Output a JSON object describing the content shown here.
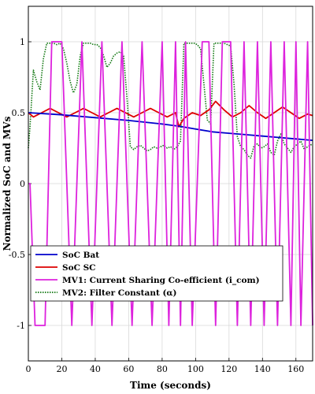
{
  "chart_data": {
    "type": "line",
    "title": "",
    "xlabel": "Time (seconds)",
    "ylabel": "Normalized SoC and MVs",
    "xlim": [
      0,
      170
    ],
    "ylim": [
      -1.25,
      1.25
    ],
    "x_ticks": [
      0,
      20,
      40,
      60,
      80,
      100,
      120,
      140,
      160
    ],
    "y_ticks": [
      -1,
      -0.5,
      0,
      0.5,
      1
    ],
    "x_tick_labels": [
      "0",
      "20",
      "40",
      "60",
      "80",
      "100",
      "120",
      "140",
      "160"
    ],
    "y_tick_labels": [
      "-1",
      "-0.5",
      "0",
      "0.5",
      "1"
    ],
    "grid": true,
    "legend_position": "lower-left",
    "series": [
      {
        "name": "SoC Bat",
        "color": "#0000cc",
        "style": "solid",
        "x": [
          0,
          20,
          40,
          60,
          80,
          90,
          100,
          110,
          120,
          130,
          140,
          150,
          160,
          170
        ],
        "y": [
          0.5,
          0.485,
          0.465,
          0.445,
          0.42,
          0.405,
          0.385,
          0.365,
          0.355,
          0.345,
          0.335,
          0.325,
          0.315,
          0.305
        ]
      },
      {
        "name": "SoC SC",
        "color": "#dd0000",
        "style": "solid",
        "x": [
          0,
          3,
          8,
          13,
          18,
          23,
          28,
          33,
          38,
          43,
          48,
          53,
          58,
          63,
          68,
          73,
          78,
          83,
          88,
          90,
          93,
          98,
          103,
          108,
          112,
          117,
          122,
          127,
          132,
          137,
          142,
          147,
          152,
          157,
          162,
          167,
          170
        ],
        "y": [
          0.5,
          0.47,
          0.5,
          0.53,
          0.5,
          0.47,
          0.5,
          0.53,
          0.5,
          0.47,
          0.5,
          0.53,
          0.5,
          0.47,
          0.5,
          0.53,
          0.5,
          0.47,
          0.5,
          0.4,
          0.46,
          0.5,
          0.48,
          0.52,
          0.58,
          0.52,
          0.47,
          0.5,
          0.55,
          0.5,
          0.46,
          0.5,
          0.54,
          0.5,
          0.46,
          0.49,
          0.48
        ]
      },
      {
        "name": "MV1: Current Sharing Co-efficient (i_com)",
        "color": "#dd22dd",
        "style": "solid",
        "x": [
          0,
          1,
          4,
          10,
          14,
          20,
          26,
          32,
          38,
          44,
          50,
          56,
          62,
          68,
          74,
          80,
          84,
          88,
          91,
          94,
          98,
          104,
          108,
          112,
          116,
          121,
          125,
          129,
          133,
          137,
          141,
          145,
          149,
          153,
          157,
          160,
          163,
          167,
          170
        ],
        "y": [
          0,
          0,
          -1,
          -1,
          1,
          1,
          -1,
          1,
          -1,
          1,
          -1,
          1,
          -1,
          1,
          -1,
          1,
          -1,
          1,
          -1,
          1,
          -1,
          1,
          1,
          -1,
          1,
          1,
          -1,
          1,
          -1,
          1,
          -1,
          1,
          -1,
          1,
          -1,
          1,
          -1,
          1,
          -1
        ]
      },
      {
        "name": "MV2: Filter Constant (α)",
        "color": "#117711",
        "style": "dotted",
        "x": [
          0,
          1,
          3,
          5,
          7,
          9,
          11,
          13,
          15,
          17,
          19,
          21,
          23,
          25,
          27,
          29,
          31,
          33,
          35,
          37,
          39,
          41,
          43,
          45,
          47,
          49,
          51,
          53,
          55,
          57,
          59,
          61,
          63,
          65,
          67,
          69,
          71,
          73,
          75,
          77,
          79,
          81,
          83,
          85,
          87,
          89,
          91,
          93,
          95,
          97,
          99,
          101,
          103,
          105,
          107,
          109,
          111,
          113,
          115,
          117,
          119,
          121,
          123,
          125,
          127,
          129,
          131,
          133,
          135,
          137,
          139,
          141,
          143,
          145,
          147,
          149,
          151,
          153,
          155,
          157,
          159,
          161,
          163,
          165,
          167,
          170
        ],
        "y": [
          0.25,
          0.4,
          0.8,
          0.72,
          0.66,
          0.88,
          0.99,
          0.99,
          0.99,
          0.98,
          0.99,
          0.95,
          0.85,
          0.72,
          0.64,
          0.7,
          0.9,
          0.99,
          0.99,
          0.99,
          0.98,
          0.98,
          0.96,
          0.9,
          0.82,
          0.85,
          0.9,
          0.92,
          0.93,
          0.9,
          0.6,
          0.26,
          0.24,
          0.26,
          0.27,
          0.25,
          0.23,
          0.24,
          0.26,
          0.25,
          0.26,
          0.27,
          0.25,
          0.26,
          0.24,
          0.26,
          0.3,
          0.99,
          0.99,
          0.99,
          0.99,
          0.98,
          0.95,
          0.7,
          0.45,
          0.42,
          0.99,
          0.99,
          0.99,
          0.99,
          0.98,
          0.97,
          0.7,
          0.33,
          0.26,
          0.24,
          0.2,
          0.18,
          0.27,
          0.28,
          0.25,
          0.26,
          0.28,
          0.22,
          0.2,
          0.3,
          0.35,
          0.28,
          0.25,
          0.22,
          0.26,
          0.28,
          0.3,
          0.24,
          0.26,
          0.28
        ]
      }
    ]
  }
}
